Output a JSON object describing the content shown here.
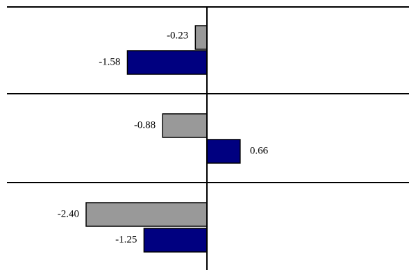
{
  "chart_data": {
    "type": "bar",
    "orientation": "horizontal",
    "title": "",
    "xlabel": "",
    "ylabel": "",
    "legend": "none",
    "grid": "horizontal separators between groups",
    "categories": [
      "",
      "",
      ""
    ],
    "series": [
      {
        "color": "#999999",
        "values": [
          -0.23,
          -0.88,
          -2.4
        ]
      },
      {
        "color": "#000080",
        "values": [
          -1.58,
          0.66,
          -1.25
        ]
      }
    ],
    "data_labels": [
      [
        "-0.23",
        "-0.88",
        "-2.40"
      ],
      [
        "-1.58",
        "0.66",
        "-1.25"
      ]
    ]
  }
}
